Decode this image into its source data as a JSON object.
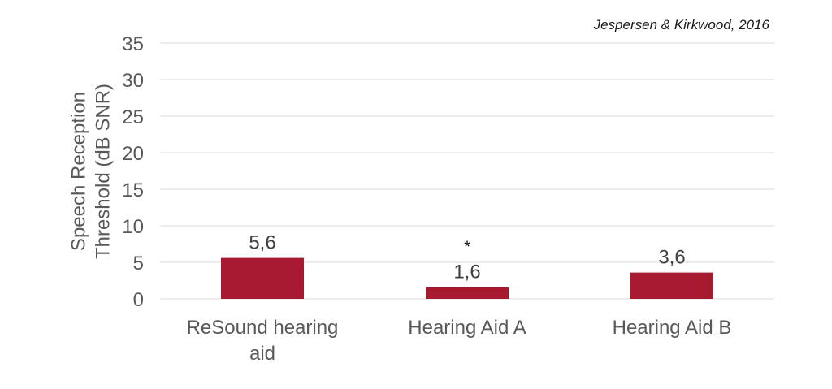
{
  "citation": "Jespersen & Kirkwood, 2016",
  "chart_data": {
    "type": "bar",
    "categories": [
      [
        "ReSound hearing",
        "aid"
      ],
      [
        "Hearing Aid A"
      ],
      [
        "Hearing Aid B"
      ]
    ],
    "values": [
      5.6,
      1.6,
      3.6
    ],
    "data_labels": [
      "5,6",
      "1,6",
      "3,6"
    ],
    "annotations": [
      "",
      "*",
      ""
    ],
    "title": "",
    "xlabel": "",
    "ylabel": [
      "Speech Reception",
      "Threshold (dB SNR)"
    ],
    "ylim": [
      0,
      35
    ],
    "yticks": [
      0,
      5,
      10,
      15,
      20,
      25,
      30,
      35
    ],
    "grid": true,
    "bar_color": "#a6192e",
    "grid_color": "#d9d9d9"
  }
}
